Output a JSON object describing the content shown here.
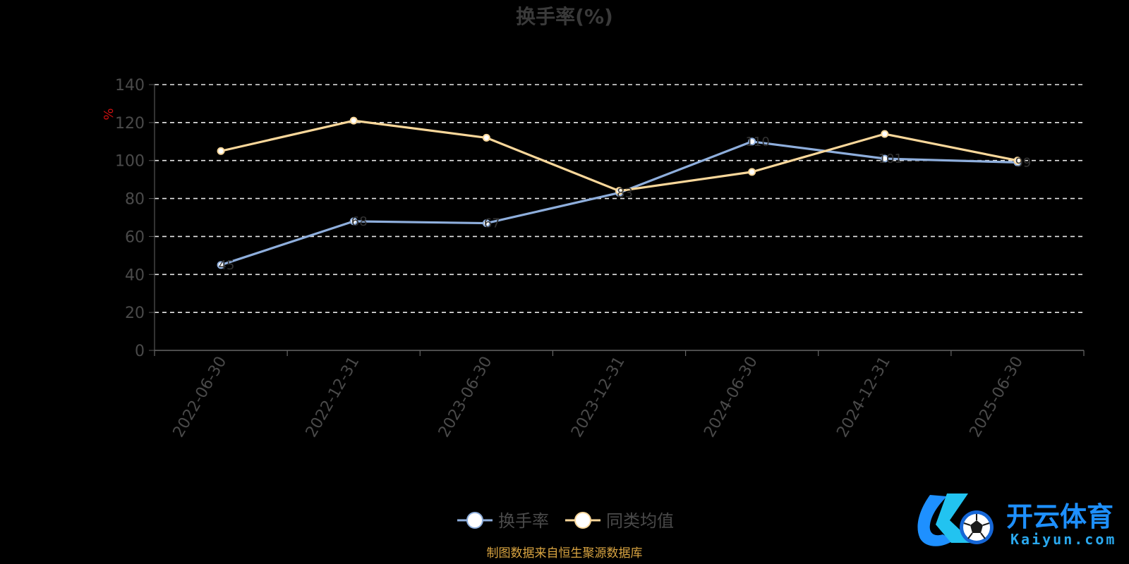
{
  "chart_data": {
    "type": "line",
    "title": "换手率(%)",
    "ylabel": "%",
    "ylim": [
      0,
      140
    ],
    "yticks": [
      "0",
      "20",
      "40",
      "60",
      "80",
      "100",
      "120",
      "140"
    ],
    "categories": [
      "2022-06-30",
      "2022-12-31",
      "2023-06-30",
      "2023-12-31",
      "2024-06-30",
      "2024-12-31",
      "2025-06-30"
    ],
    "grid": true,
    "legend_position": "bottom",
    "series": [
      {
        "name": "换手率",
        "color": "#8eaedc",
        "values": [
          45,
          68,
          67,
          83,
          110,
          101,
          99
        ],
        "labels": [
          "45",
          "68",
          "67",
          "83",
          "110",
          "101",
          "99"
        ]
      },
      {
        "name": "同类均值",
        "color": "#f9d79a",
        "values": [
          105,
          121,
          112,
          84,
          94,
          114,
          100
        ]
      }
    ]
  },
  "footer": {
    "source": "制图数据来自恒生聚源数据库"
  },
  "watermark": {
    "cn": "开云体育",
    "en": "Kaiyun.com",
    "accent_color": "#1e90ff"
  }
}
